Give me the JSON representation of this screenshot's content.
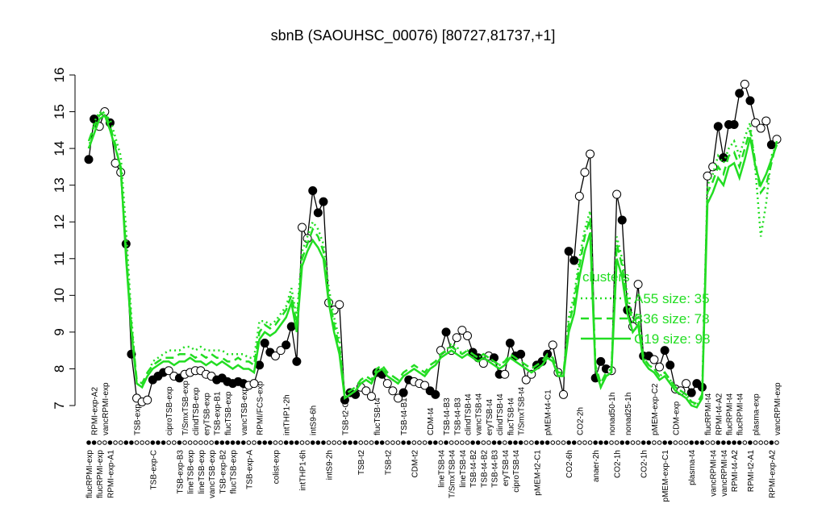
{
  "chart_data": {
    "type": "line",
    "title": "sbnB (SAOUHSC_00076) [80727,81737,+1]",
    "ylim": [
      7,
      16
    ],
    "yticks": [
      7,
      8,
      9,
      10,
      11,
      12,
      13,
      14,
      15,
      16
    ],
    "legend_title": "clusters",
    "categories": [
      "flucRPMI-exp",
      "RPMI-exp-A2",
      "flucRPMI-exp",
      "vancRPMI-exp",
      "RPMI-exp-A1",
      null,
      null,
      null,
      null,
      "TSB-exp",
      null,
      null,
      "TSB-exp-C",
      null,
      null,
      "ciproTSB-exp",
      null,
      "TSB-exp-B3",
      "T/SmxTSB-exp",
      "lineTSB-exp",
      "clindTSB-exp",
      "lineTSB-exp",
      "eryTSB-exp",
      "vancTSB-exp",
      "TSB-exp-B1",
      "TSB-exp-B2",
      "flucTSB-exp",
      "flucTSB-exp",
      null,
      "vancTSB-exp",
      "TSB-exp-A",
      null,
      "RPMI/FCS-exp",
      null,
      null,
      "colist-exp",
      null,
      "intTHP1-2h",
      null,
      null,
      "intTHP1-6h",
      null,
      "intS9-6h",
      null,
      null,
      "intS9-2h",
      null,
      null,
      "TSB-t2-C",
      null,
      null,
      "TSB-t2",
      null,
      null,
      "flucTSB-t4",
      null,
      "TSB-t2",
      null,
      null,
      "TSB-t4-B1",
      null,
      "CDM-t2",
      null,
      null,
      "CDM-t4",
      null,
      "lineTSB-t4",
      "TSB-t4-B3",
      "T/SmxTSB-t4",
      "TSB-t4-B3",
      "lineTSB-t4",
      "clindTSB-t4",
      "TSB-t4-B2",
      "vancTSB-t4",
      "TSB-t4-B2",
      "eryTSB-t4",
      "TSB-t4-B3",
      "clindTSB-t4",
      "eryTSB-t4",
      "flucTSB-t4",
      "ciproTSB-t4",
      "T/SmxTSB-t4",
      null,
      null,
      "pMEM-t2-C1",
      null,
      "pMEM-t4-C1",
      null,
      null,
      null,
      "CO2-6h",
      null,
      "CO2-2h",
      null,
      null,
      "anaer-2h",
      null,
      null,
      "nonad50-1h",
      "CO2-1h",
      null,
      "nonad25-1h",
      null,
      null,
      "CO2-1h",
      null,
      "pMEM-exp-C2",
      null,
      "pMEM-exp-C1",
      null,
      "CDM-exp",
      null,
      null,
      "plasma-t4",
      null,
      null,
      "flucRPMI-t4",
      "vancRPMI-t4",
      "RPMI-t4-A2",
      "vancRPMI-t4",
      "flucRPMI-t4",
      "RPMI-t4-A2",
      "flucRPMI-t4",
      null,
      "RPMI-t2-A1",
      "plasma-exp",
      null,
      null,
      "RPMI-exp-A2",
      "vancRPMI-exp"
    ],
    "series": [
      {
        "color": "#000000",
        "style": "points",
        "filled": [
          true,
          true,
          false,
          false,
          true,
          false,
          false,
          true,
          true,
          false,
          false,
          false,
          true,
          true,
          true,
          false,
          false,
          true,
          false,
          false,
          false,
          false,
          false,
          false,
          true,
          true,
          true,
          true,
          true,
          true,
          false,
          false,
          true,
          true,
          true,
          false,
          false,
          true,
          true,
          true,
          false,
          false,
          true,
          true,
          true,
          false,
          false,
          false,
          true,
          true,
          true,
          false,
          false,
          false,
          true,
          true,
          false,
          false,
          false,
          true,
          true,
          false,
          false,
          false,
          true,
          true,
          false,
          true,
          false,
          false,
          false,
          false,
          true,
          true,
          false,
          false,
          true,
          true,
          false,
          true,
          true,
          true,
          false,
          false,
          true,
          true,
          true,
          false,
          false,
          false,
          true,
          true,
          false,
          false,
          false,
          true,
          true,
          true,
          false,
          false,
          true,
          true,
          false,
          false,
          true,
          true,
          false,
          false,
          true,
          true,
          false,
          false,
          false,
          true,
          true,
          true,
          false,
          false,
          true,
          true,
          true,
          true,
          true,
          false,
          true,
          false,
          false,
          false,
          true,
          false
        ],
        "values": [
          13.7,
          14.8,
          14.6,
          15.0,
          14.7,
          13.6,
          13.35,
          11.4,
          8.4,
          7.2,
          7.1,
          7.15,
          7.7,
          7.8,
          7.9,
          7.95,
          7.8,
          7.75,
          7.85,
          7.9,
          7.95,
          7.95,
          7.85,
          7.8,
          7.7,
          7.75,
          7.65,
          7.6,
          7.65,
          7.6,
          7.55,
          7.6,
          8.1,
          8.7,
          8.45,
          8.35,
          8.5,
          8.65,
          9.15,
          8.2,
          11.85,
          11.55,
          12.85,
          12.25,
          12.55,
          9.8,
          9.6,
          9.75,
          7.15,
          7.35,
          7.3,
          7.5,
          7.4,
          7.25,
          7.9,
          7.85,
          7.6,
          7.4,
          7.2,
          7.35,
          7.7,
          7.65,
          7.6,
          7.55,
          7.4,
          7.3,
          8.5,
          9.0,
          8.5,
          8.85,
          9.05,
          8.9,
          8.45,
          8.3,
          8.15,
          8.35,
          8.3,
          7.85,
          7.85,
          8.7,
          8.35,
          8.4,
          7.7,
          7.85,
          8.1,
          8.2,
          8.4,
          8.65,
          7.9,
          7.3,
          11.2,
          10.95,
          12.7,
          13.35,
          13.85,
          7.75,
          8.2,
          8.0,
          7.95,
          12.75,
          12.05,
          9.6,
          9.15,
          10.3,
          8.35,
          8.35,
          8.25,
          8.05,
          8.5,
          8.1,
          7.45,
          7.4,
          7.6,
          7.35,
          7.6,
          7.5,
          13.25,
          13.5,
          14.6,
          13.75,
          14.65,
          14.65,
          15.5,
          15.75,
          15.3,
          14.7,
          14.55,
          14.75,
          14.1,
          14.25
        ]
      },
      {
        "name": "A55 size: 35",
        "color": "#22dd22",
        "style": "dotted",
        "values": [
          14.0,
          14.7,
          15.0,
          14.9,
          14.8,
          14.3,
          13.8,
          11.8,
          9.4,
          7.6,
          7.5,
          7.8,
          8.2,
          8.3,
          8.4,
          8.5,
          8.5,
          8.5,
          8.6,
          8.6,
          8.5,
          8.6,
          8.5,
          8.5,
          8.5,
          8.5,
          8.4,
          8.4,
          8.4,
          8.4,
          8.3,
          8.3,
          9.3,
          9.3,
          9.2,
          9.3,
          9.5,
          9.7,
          10.2,
          9.4,
          11.2,
          11.6,
          12.0,
          11.8,
          11.4,
          10.2,
          9.4,
          8.8,
          7.2,
          7.3,
          7.4,
          7.6,
          7.7,
          7.6,
          7.9,
          8.0,
          7.8,
          7.7,
          7.6,
          7.8,
          7.9,
          8.0,
          7.9,
          7.8,
          8.0,
          8.1,
          8.3,
          8.5,
          8.7,
          8.6,
          8.4,
          8.5,
          8.4,
          8.3,
          8.4,
          8.3,
          8.2,
          8.1,
          8.2,
          8.3,
          8.2,
          8.1,
          8.0,
          7.9,
          8.0,
          8.1,
          8.3,
          8.2,
          7.9,
          7.8,
          9.4,
          10.0,
          11.0,
          11.8,
          12.3,
          8.0,
          7.5,
          7.8,
          7.9,
          11.6,
          11.0,
          10.0,
          9.4,
          9.5,
          8.3,
          8.1,
          8.0,
          7.8,
          7.9,
          7.7,
          7.5,
          7.4,
          7.3,
          7.1,
          7.0,
          7.3,
          13.0,
          13.3,
          13.8,
          13.6,
          14.0,
          14.2,
          13.8,
          14.3,
          14.7,
          13.4,
          11.6,
          12.5,
          13.8,
          14.1
        ]
      },
      {
        "name": "B36 size: 78",
        "color": "#22dd22",
        "style": "dashed",
        "values": [
          14.2,
          14.6,
          14.9,
          15.0,
          14.6,
          14.1,
          13.4,
          11.2,
          9.2,
          7.7,
          7.6,
          7.9,
          8.1,
          8.2,
          8.3,
          8.3,
          8.3,
          8.4,
          8.4,
          8.4,
          8.3,
          8.4,
          8.3,
          8.4,
          8.3,
          8.3,
          8.2,
          8.2,
          8.3,
          8.2,
          8.2,
          8.1,
          9.0,
          9.2,
          9.1,
          9.2,
          9.4,
          9.6,
          10.0,
          9.2,
          11.0,
          11.4,
          11.8,
          11.6,
          11.2,
          10.0,
          9.2,
          8.6,
          7.3,
          7.4,
          7.5,
          7.7,
          7.8,
          7.7,
          8.0,
          8.1,
          7.9,
          7.8,
          7.7,
          7.9,
          8.0,
          8.1,
          8.0,
          7.9,
          8.1,
          8.2,
          8.4,
          8.5,
          8.6,
          8.5,
          8.4,
          8.5,
          8.4,
          8.3,
          8.4,
          8.3,
          8.2,
          8.1,
          8.2,
          8.4,
          8.3,
          8.2,
          8.1,
          8.0,
          8.1,
          8.2,
          8.4,
          8.3,
          7.9,
          7.9,
          9.2,
          9.8,
          10.8,
          11.6,
          12.1,
          8.1,
          7.6,
          7.9,
          8.0,
          11.4,
          10.8,
          9.8,
          9.3,
          9.4,
          8.3,
          8.1,
          8.0,
          7.8,
          7.9,
          7.7,
          7.5,
          7.4,
          7.3,
          7.1,
          7.05,
          7.3,
          12.8,
          13.1,
          13.5,
          13.3,
          13.8,
          13.9,
          13.5,
          14.0,
          14.5,
          13.6,
          12.8,
          13.0,
          13.6,
          14.2
        ]
      },
      {
        "name": "C19 size: 98",
        "color": "#22dd22",
        "style": "solid",
        "values": [
          14.0,
          14.4,
          14.8,
          14.9,
          14.5,
          14.0,
          13.5,
          11.0,
          9.0,
          7.6,
          7.5,
          7.8,
          8.0,
          8.1,
          8.2,
          8.2,
          8.1,
          8.2,
          8.2,
          8.3,
          8.2,
          8.2,
          8.1,
          8.2,
          8.1,
          8.2,
          8.1,
          8.0,
          8.1,
          8.0,
          8.0,
          7.9,
          8.8,
          9.0,
          8.9,
          9.0,
          9.2,
          9.4,
          9.8,
          9.0,
          10.8,
          11.2,
          11.5,
          11.3,
          11.0,
          9.8,
          9.0,
          8.4,
          7.2,
          7.3,
          7.4,
          7.6,
          7.7,
          7.6,
          7.9,
          8.0,
          7.8,
          7.7,
          7.6,
          7.8,
          7.9,
          8.0,
          7.9,
          7.8,
          8.0,
          8.1,
          8.3,
          8.4,
          8.5,
          8.4,
          8.3,
          8.4,
          8.3,
          8.2,
          8.3,
          8.2,
          8.1,
          8.0,
          8.1,
          8.3,
          8.2,
          8.1,
          8.0,
          7.9,
          8.0,
          8.1,
          8.3,
          8.2,
          7.8,
          7.8,
          9.0,
          9.5,
          10.5,
          11.2,
          11.7,
          8.0,
          7.5,
          7.8,
          7.9,
          11.0,
          10.5,
          9.5,
          9.0,
          9.2,
          8.2,
          8.0,
          7.9,
          7.7,
          7.8,
          7.6,
          7.4,
          7.3,
          7.2,
          7.0,
          6.95,
          7.2,
          12.5,
          12.8,
          13.2,
          13.0,
          13.5,
          13.6,
          13.2,
          13.7,
          14.3,
          13.5,
          13.0,
          13.3,
          13.7,
          14.1
        ]
      }
    ]
  }
}
